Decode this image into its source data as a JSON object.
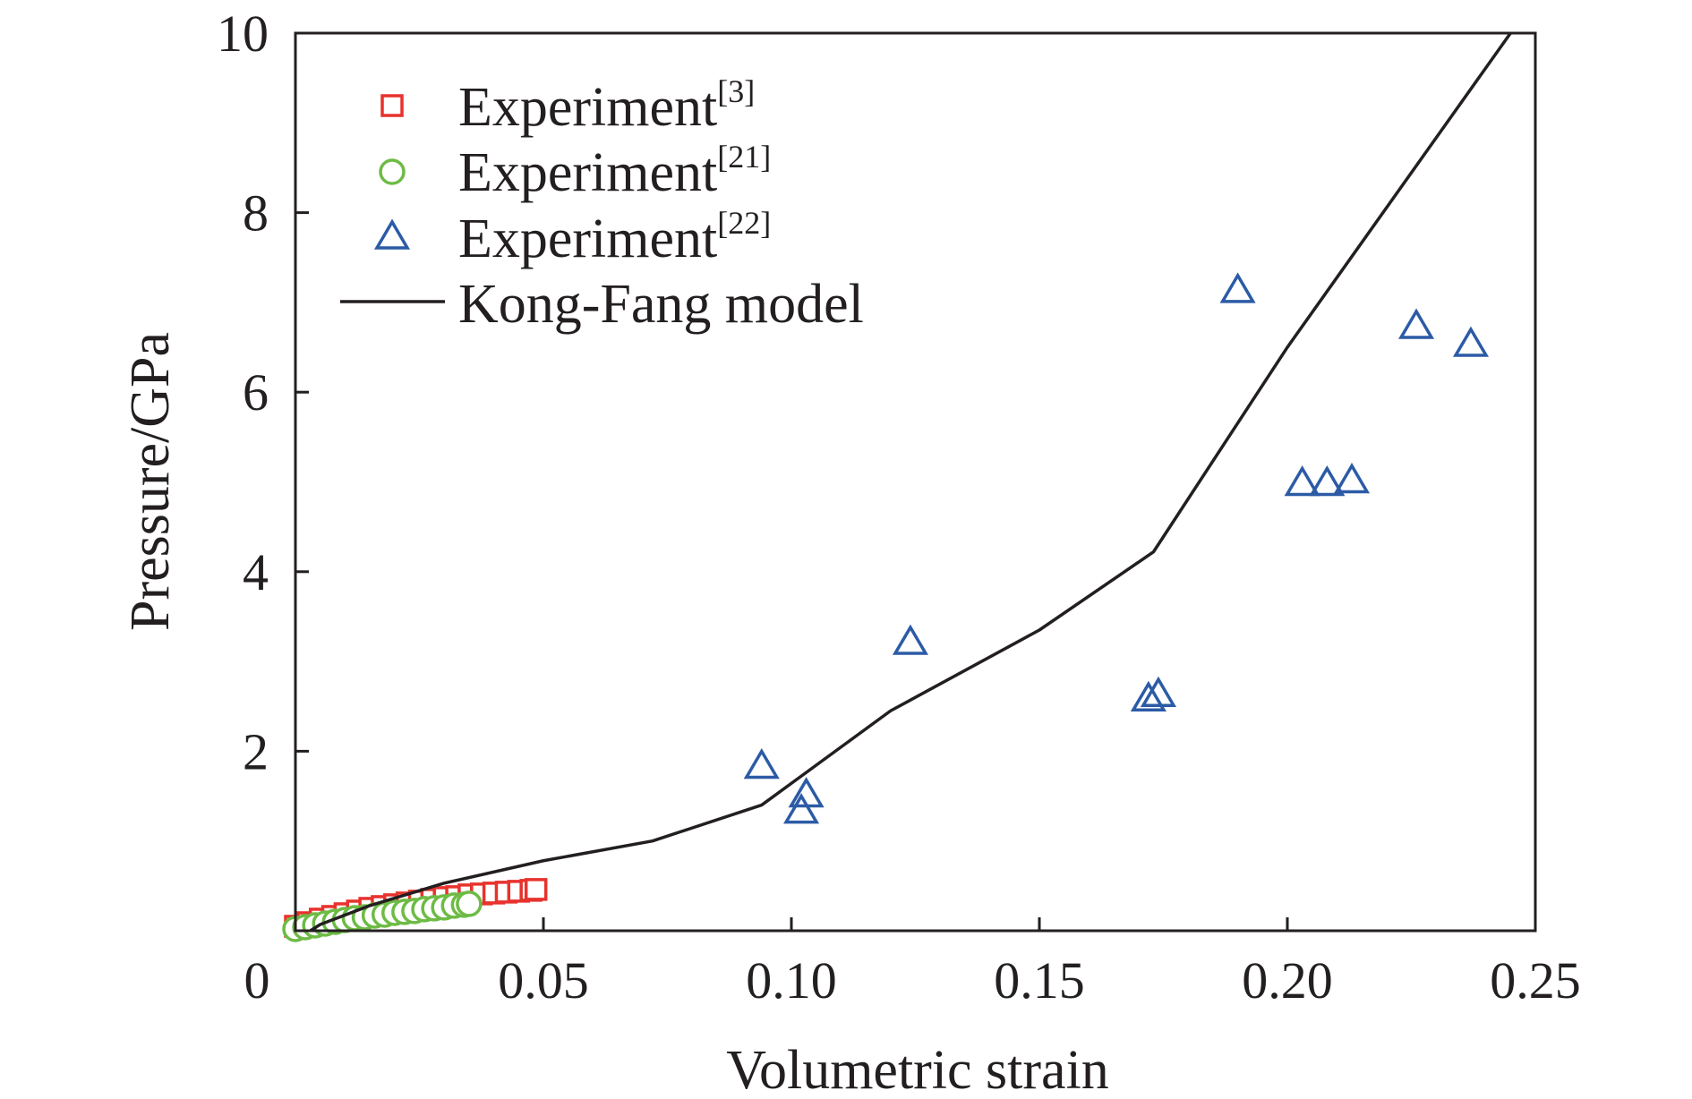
{
  "chart_data": {
    "type": "scatter",
    "title": "",
    "xlabel": "Volumetric strain",
    "ylabel": "Pressure/GPa",
    "xlim": [
      0,
      0.25
    ],
    "ylim": [
      0,
      10
    ],
    "x_ticks": [
      "0",
      "0.05",
      "0.10",
      "0.15",
      "0.20",
      "0.25"
    ],
    "x_tick_values": [
      0,
      0.05,
      0.1,
      0.15,
      0.2,
      0.25
    ],
    "y_ticks": [
      "2",
      "4",
      "6",
      "8",
      "10"
    ],
    "y_tick_values": [
      2,
      4,
      6,
      8,
      10
    ],
    "grid": false,
    "legend_position": "top-left",
    "series": [
      {
        "name": "Experiment",
        "ref": "[3]",
        "marker": "square",
        "color": "#e8322d",
        "x": [
          0.0,
          0.0025,
          0.005,
          0.0075,
          0.01,
          0.0125,
          0.015,
          0.0175,
          0.02,
          0.0225,
          0.025,
          0.0275,
          0.03,
          0.0325,
          0.035,
          0.0375,
          0.04,
          0.0425,
          0.045,
          0.0475,
          0.0485
        ],
        "y": [
          0.05,
          0.09,
          0.13,
          0.16,
          0.19,
          0.22,
          0.25,
          0.27,
          0.29,
          0.31,
          0.33,
          0.35,
          0.37,
          0.38,
          0.4,
          0.41,
          0.42,
          0.43,
          0.44,
          0.45,
          0.46
        ]
      },
      {
        "name": "Experiment",
        "ref": "[21]",
        "marker": "circle",
        "color": "#6dbb45",
        "x": [
          0.0,
          0.002,
          0.004,
          0.006,
          0.008,
          0.01,
          0.012,
          0.014,
          0.016,
          0.018,
          0.02,
          0.022,
          0.024,
          0.026,
          0.028,
          0.03,
          0.032,
          0.034,
          0.035
        ],
        "y": [
          0.02,
          0.04,
          0.06,
          0.08,
          0.1,
          0.12,
          0.14,
          0.15,
          0.17,
          0.18,
          0.2,
          0.21,
          0.22,
          0.24,
          0.25,
          0.26,
          0.28,
          0.29,
          0.3
        ]
      },
      {
        "name": "Experiment",
        "ref": "[22]",
        "marker": "triangle",
        "color": "#2c5ba6",
        "x": [
          0.094,
          0.103,
          0.102,
          0.124,
          0.172,
          0.174,
          0.19,
          0.203,
          0.208,
          0.213,
          0.226,
          0.237
        ],
        "y": [
          1.8,
          1.48,
          1.3,
          3.18,
          2.55,
          2.6,
          7.1,
          4.95,
          4.95,
          4.98,
          6.7,
          6.5
        ]
      },
      {
        "name": "Kong-Fang model",
        "ref": "",
        "marker": "line",
        "color": "#231f20",
        "x": [
          0.003,
          0.005,
          0.015,
          0.03,
          0.05,
          0.072,
          0.094,
          0.12,
          0.15,
          0.173,
          0.2,
          0.245
        ],
        "y": [
          0.0,
          0.07,
          0.28,
          0.53,
          0.78,
          1.0,
          1.4,
          2.45,
          3.35,
          4.22,
          6.5,
          10.0
        ]
      }
    ]
  }
}
